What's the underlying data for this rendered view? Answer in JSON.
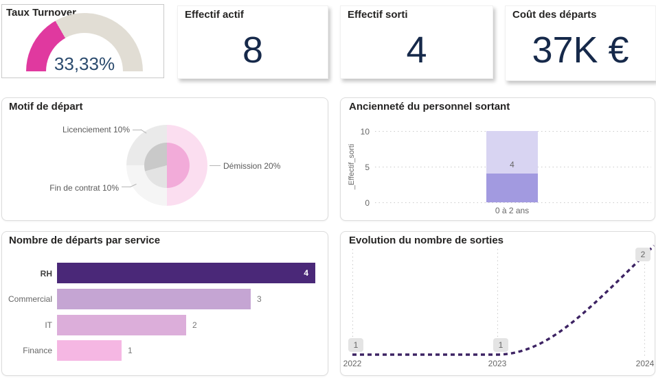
{
  "colors": {
    "accent_pink": "#e0399f",
    "gauge_track": "#e1ddd4",
    "kpi_navy": "#16294a",
    "gauge_value_blue": "#2b4b6e",
    "title_dark": "#252423",
    "text_grey": "#666666",
    "badge_bg": "#e4e4e4"
  },
  "cards": {
    "effectif_actif": {
      "title": "Effectif actif",
      "value": "8"
    },
    "effectif_sorti": {
      "title": "Effectif sorti",
      "value": "4"
    },
    "cout_departs": {
      "title": "Coût des départs",
      "value": "37K €"
    }
  },
  "chart_data": [
    {
      "type": "gauge",
      "title": "Taux Turnover",
      "value_label": "33,33%",
      "value_pct": 33.33,
      "range_pct": [
        0,
        100
      ],
      "color": "#e0399f",
      "track_color": "#e1ddd4"
    },
    {
      "type": "pie",
      "title": "Motif de départ",
      "slices": [
        {
          "name": "Démission",
          "pct_label": "Démission 20%",
          "value_pct": 20,
          "fraction": 0.5,
          "color_inner": "#f2abd9",
          "color_outer": "#fbdef0"
        },
        {
          "name": "Fin de contrat",
          "pct_label": "Fin de contrat 10%",
          "value_pct": 10,
          "fraction": 0.25,
          "color_inner": "#e3e3e3",
          "color_outer": "#f5f5f5"
        },
        {
          "name": "Licenciement",
          "pct_label": "Licenciement 10%",
          "value_pct": 10,
          "fraction": 0.25,
          "color_inner": "#c9c9c9",
          "color_outer": "#eaeaea"
        }
      ]
    },
    {
      "type": "bar",
      "title": "Ancienneté du personnel sortant",
      "ylabel": "_Effectif_sorti",
      "categories": [
        "0 à 2 ans"
      ],
      "values": [
        4
      ],
      "ylim": [
        0,
        10
      ],
      "yticks": [
        10,
        5,
        0
      ],
      "grid": "dotted",
      "bar_color": "#a29ae0",
      "bar_bg_color": "#d8d4f2"
    },
    {
      "type": "bar",
      "orientation": "horizontal",
      "title": "Nombre de départs par service",
      "categories": [
        "RH",
        "Commercial",
        "IT",
        "Finance"
      ],
      "values": [
        4,
        3,
        2,
        1
      ],
      "colors": [
        "#4a2878",
        "#c5a5d3",
        "#dcaeda",
        "#f5b7e3"
      ],
      "xlim": [
        0,
        4
      ]
    },
    {
      "type": "line",
      "title": "Evolution du nombre de sorties",
      "x": [
        2022,
        2023,
        2024
      ],
      "values": [
        1,
        1,
        2
      ],
      "line_style": "dashed",
      "line_color": "#3d2363",
      "ylim": [
        1,
        2
      ],
      "grid": "dotted-vertical"
    }
  ]
}
